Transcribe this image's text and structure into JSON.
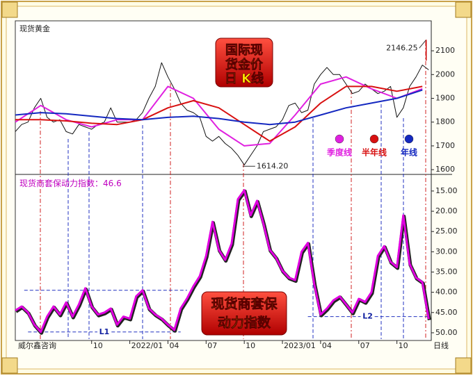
{
  "chart_data": [
    {
      "type": "line",
      "title": "现货黄金",
      "badge": [
        "国际现",
        "货金价",
        "日 K线"
      ],
      "x": [
        3,
        3.5,
        4,
        4.5,
        5,
        5.5,
        6,
        6.5,
        7,
        7.5,
        8,
        8.5,
        9,
        9.5,
        10,
        10.5,
        11,
        11.5,
        12,
        12.5,
        13,
        13.5,
        14,
        14.5,
        15,
        15.5,
        16,
        16.5,
        17,
        17.5,
        18,
        18.5,
        19,
        19.5,
        20,
        20.5,
        21,
        21.5,
        22,
        22.5,
        23,
        23.5,
        24,
        24.5,
        25,
        25.5,
        26,
        26.5,
        27,
        27.5,
        28,
        28.5,
        29,
        29.5,
        30,
        30.5,
        31,
        31.5,
        32,
        32.5,
        33,
        33.5,
        34,
        34.5,
        35,
        35.5
      ],
      "xlim": [
        3,
        35.7
      ],
      "ylim": [
        1580,
        2226
      ],
      "yticks": [
        1600,
        1700,
        1800,
        1900,
        2000,
        2100
      ],
      "series": [
        {
          "color": "#111111",
          "values": [
            1760,
            1790,
            1800,
            1860,
            1900,
            1820,
            1800,
            1810,
            1760,
            1750,
            1790,
            1780,
            1770,
            1790,
            1800,
            1860,
            1800,
            1800,
            1800,
            1810,
            1840,
            1900,
            1950,
            2050,
            1990,
            1940,
            1880,
            1850,
            1840,
            1820,
            1740,
            1720,
            1740,
            1710,
            1690,
            1660,
            1620,
            1660,
            1700,
            1760,
            1770,
            1780,
            1810,
            1870,
            1880,
            1840,
            1850,
            1960,
            2000,
            2030,
            2000,
            2000,
            1960,
            1920,
            1930,
            1960,
            1940,
            1920,
            1930,
            1950,
            1820,
            1860,
            1950,
            1990,
            2040,
            2020
          ]
        },
        {
          "name": "季度线",
          "color": "#e020e0",
          "x": [
            3,
            5,
            7,
            9,
            11,
            13,
            15,
            17,
            19,
            21,
            23,
            25,
            27,
            29,
            31,
            33,
            35
          ],
          "values": [
            1800,
            1870,
            1810,
            1780,
            1810,
            1810,
            1950,
            1900,
            1770,
            1700,
            1710,
            1830,
            1960,
            1990,
            1940,
            1900,
            1940
          ]
        },
        {
          "name": "半年线",
          "color": "#d81010",
          "x": [
            3,
            5,
            7,
            9,
            11,
            13,
            15,
            17,
            19,
            21,
            23,
            25,
            27,
            29,
            31,
            33,
            35
          ],
          "values": [
            1810,
            1810,
            1805,
            1795,
            1790,
            1810,
            1860,
            1890,
            1860,
            1790,
            1720,
            1780,
            1880,
            1950,
            1950,
            1930,
            1950
          ]
        },
        {
          "name": "年线",
          "color": "#1428c0",
          "x": [
            3,
            5,
            7,
            9,
            11,
            13,
            15,
            17,
            19,
            21,
            23,
            25,
            27,
            29,
            31,
            33,
            35
          ],
          "values": [
            1830,
            1840,
            1835,
            1825,
            1815,
            1810,
            1820,
            1825,
            1815,
            1800,
            1790,
            1800,
            1830,
            1860,
            1880,
            1900,
            1935
          ]
        }
      ],
      "high": {
        "x": 35.3,
        "value": 2146.25
      },
      "low": {
        "x": 21.2,
        "value": 1614.2,
        "label": "1614.20"
      }
    },
    {
      "type": "line",
      "title": "现货商套保动力指数：",
      "current": 46.6,
      "badge": [
        "现货商套保",
        "动力指数"
      ],
      "x": [
        3,
        3.5,
        4,
        4.5,
        5,
        5.5,
        6,
        6.5,
        7,
        7.5,
        8,
        8.5,
        9,
        9.5,
        10,
        10.5,
        11,
        11.5,
        12,
        12.5,
        13,
        13.5,
        14,
        14.5,
        15,
        15.5,
        16,
        16.5,
        17,
        17.5,
        18,
        18.5,
        19,
        19.5,
        20,
        20.5,
        21,
        21.5,
        22,
        22.5,
        23,
        23.5,
        24,
        24.5,
        25,
        25.5,
        26,
        26.5,
        27,
        27.5,
        28,
        28.5,
        29,
        29.5,
        30,
        30.5,
        31,
        31.5,
        32,
        32.5,
        33,
        33.5,
        34,
        34.5,
        35,
        35.5
      ],
      "xlim": [
        3,
        35.7
      ],
      "ylim": [
        51.9,
        10.9
      ],
      "yticks": [
        {
          "value": 15,
          "label": "15.00"
        },
        {
          "value": 20,
          "label": "20.00"
        },
        {
          "value": 25,
          "label": "25.00"
        },
        {
          "value": 30,
          "label": "30.00"
        },
        {
          "value": 35,
          "label": "35.00"
        },
        {
          "value": 40,
          "label": "40.00"
        },
        {
          "value": 45,
          "label": "45.00"
        },
        {
          "value": 50,
          "label": "50.00"
        }
      ],
      "xticks": [
        {
          "value": 9,
          "label": "10"
        },
        {
          "value": 12,
          "label": "2022/01"
        },
        {
          "value": 15,
          "label": "04"
        },
        {
          "value": 18,
          "label": "07"
        },
        {
          "value": 21,
          "label": "10"
        },
        {
          "value": 24,
          "label": "2023/01"
        },
        {
          "value": 27,
          "label": "04"
        },
        {
          "value": 30,
          "label": "07"
        },
        {
          "value": 33,
          "label": "10"
        }
      ],
      "series": [
        {
          "color": "#e000e0",
          "values": [
            44.5,
            43.5,
            45,
            48,
            49.8,
            46,
            43.5,
            45.5,
            42.5,
            46,
            43,
            39,
            43.5,
            45.5,
            45,
            44,
            48,
            46,
            46.5,
            41,
            39.5,
            44,
            45.5,
            46.5,
            48,
            49.3,
            44,
            41.5,
            38.5,
            36,
            31,
            22.6,
            29.5,
            32,
            28,
            17,
            14.8,
            21,
            17.4,
            23,
            29.5,
            31.5,
            34.7,
            36.4,
            37,
            30,
            27.8,
            38,
            45.5,
            44,
            42,
            41,
            43,
            45,
            41.6,
            42.4,
            40,
            31,
            28.6,
            32.5,
            33.8,
            21,
            33,
            36.4,
            37.5,
            46.6
          ]
        }
      ],
      "ref_lines": [
        {
          "value": 39.5,
          "x": [
            3.7,
            16.5
          ]
        },
        {
          "label": "L1",
          "value": 49.8,
          "x": [
            4,
            16
          ]
        },
        {
          "label": "L2",
          "value": 46,
          "x": [
            26,
            35.4
          ]
        }
      ],
      "source": "威尔鑫咨询",
      "period": "日线"
    }
  ]
}
